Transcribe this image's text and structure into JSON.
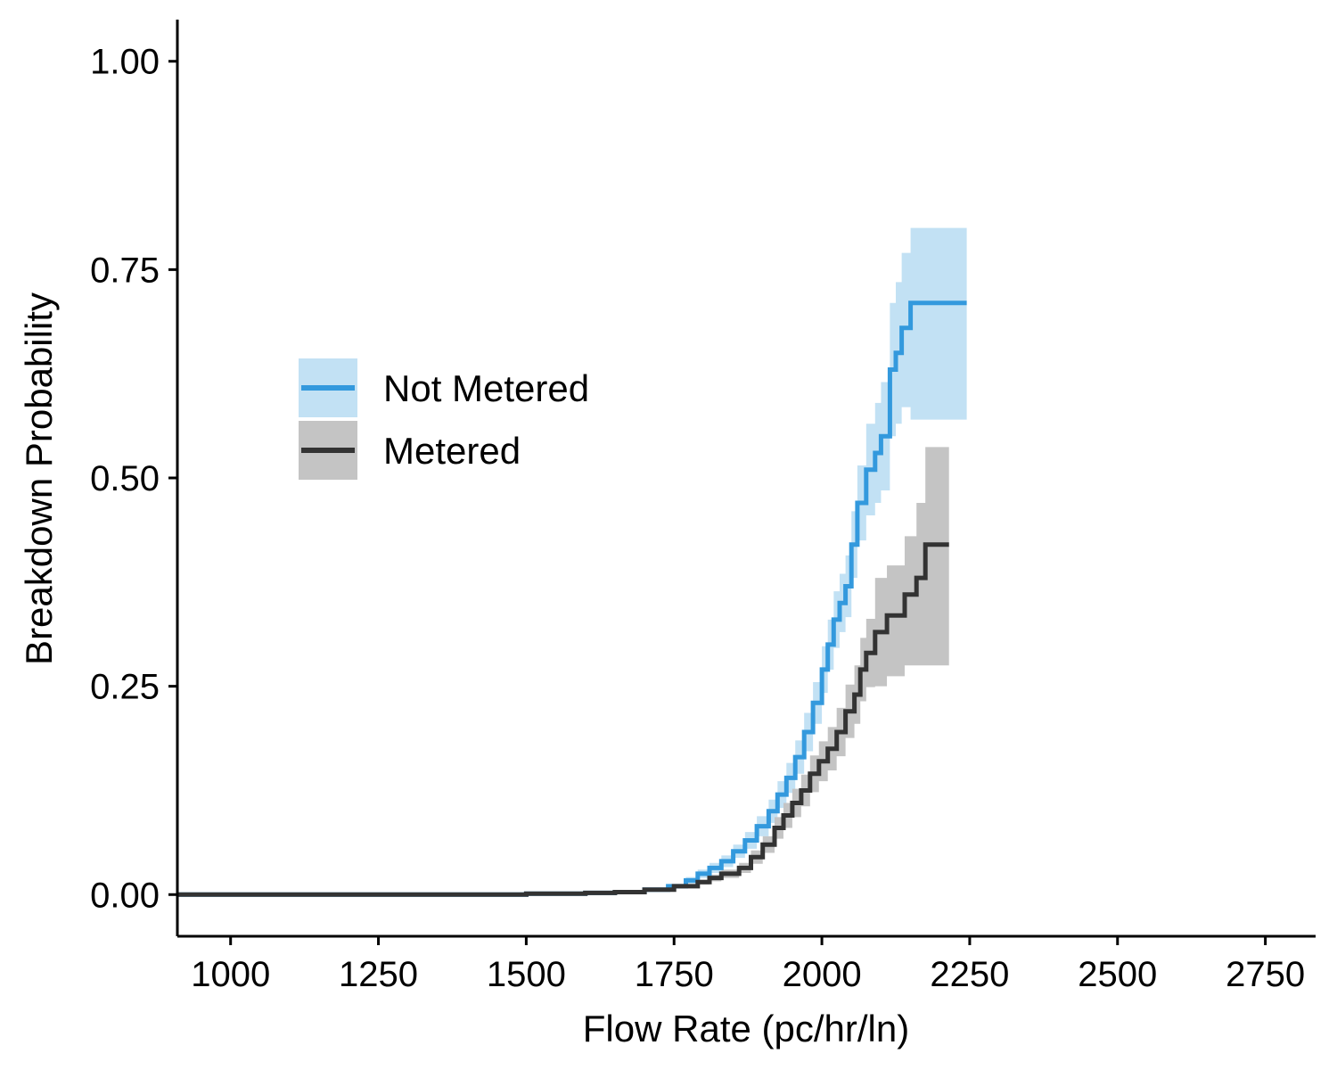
{
  "chart_data": {
    "type": "line",
    "xlabel": "Flow Rate (pc/hr/ln)",
    "ylabel": "Breakdown Probability",
    "xlim": [
      910,
      2835
    ],
    "ylim": [
      -0.05,
      1.05
    ],
    "xticks": [
      1000,
      1250,
      1500,
      1750,
      2000,
      2250,
      2500,
      2750
    ],
    "xtick_labels": [
      "1000",
      "1250",
      "1500",
      "1750",
      "2000",
      "2250",
      "2500",
      "2750"
    ],
    "yticks": [
      0,
      0.25,
      0.5,
      0.75,
      1.0
    ],
    "ytick_labels": [
      "0.00",
      "0.25",
      "0.50",
      "0.75",
      "1.00"
    ],
    "grid": false,
    "legend_position": "left-middle",
    "step": true,
    "series": [
      {
        "name": "Not Metered",
        "color": "#3399dd",
        "band_color": "#c2e1f4",
        "points": [
          [
            910,
            0
          ],
          [
            1400,
            0
          ],
          [
            1500,
            0.001
          ],
          [
            1600,
            0.002
          ],
          [
            1650,
            0.003
          ],
          [
            1700,
            0.006
          ],
          [
            1740,
            0.01
          ],
          [
            1770,
            0.017
          ],
          [
            1790,
            0.025
          ],
          [
            1810,
            0.032
          ],
          [
            1830,
            0.04
          ],
          [
            1850,
            0.052
          ],
          [
            1870,
            0.065
          ],
          [
            1890,
            0.082
          ],
          [
            1910,
            0.1
          ],
          [
            1925,
            0.12
          ],
          [
            1940,
            0.14
          ],
          [
            1955,
            0.165
          ],
          [
            1970,
            0.195
          ],
          [
            1985,
            0.23
          ],
          [
            2000,
            0.27
          ],
          [
            2010,
            0.3
          ],
          [
            2020,
            0.33
          ],
          [
            2030,
            0.35
          ],
          [
            2040,
            0.37
          ],
          [
            2050,
            0.42
          ],
          [
            2060,
            0.47
          ],
          [
            2075,
            0.51
          ],
          [
            2090,
            0.53
          ],
          [
            2100,
            0.55
          ],
          [
            2115,
            0.63
          ],
          [
            2125,
            0.65
          ],
          [
            2135,
            0.68
          ],
          [
            2150,
            0.71
          ],
          [
            2245,
            0.71
          ]
        ],
        "lower": [
          [
            910,
            0
          ],
          [
            1400,
            0
          ],
          [
            1500,
            0.0
          ],
          [
            1600,
            0.001
          ],
          [
            1650,
            0.002
          ],
          [
            1700,
            0.004
          ],
          [
            1740,
            0.008
          ],
          [
            1770,
            0.013
          ],
          [
            1790,
            0.02
          ],
          [
            1810,
            0.026
          ],
          [
            1830,
            0.033
          ],
          [
            1850,
            0.044
          ],
          [
            1870,
            0.055
          ],
          [
            1890,
            0.07
          ],
          [
            1910,
            0.086
          ],
          [
            1925,
            0.104
          ],
          [
            1940,
            0.122
          ],
          [
            1955,
            0.145
          ],
          [
            1970,
            0.172
          ],
          [
            1985,
            0.205
          ],
          [
            2000,
            0.242
          ],
          [
            2010,
            0.27
          ],
          [
            2020,
            0.296
          ],
          [
            2030,
            0.315
          ],
          [
            2040,
            0.333
          ],
          [
            2050,
            0.38
          ],
          [
            2060,
            0.425
          ],
          [
            2075,
            0.455
          ],
          [
            2090,
            0.47
          ],
          [
            2100,
            0.485
          ],
          [
            2115,
            0.55
          ],
          [
            2125,
            0.565
          ],
          [
            2135,
            0.585
          ],
          [
            2150,
            0.57
          ],
          [
            2245,
            0.57
          ]
        ],
        "upper": [
          [
            910,
            0
          ],
          [
            1400,
            0.001
          ],
          [
            1500,
            0.002
          ],
          [
            1600,
            0.003
          ],
          [
            1650,
            0.004
          ],
          [
            1700,
            0.008
          ],
          [
            1740,
            0.012
          ],
          [
            1770,
            0.021
          ],
          [
            1790,
            0.03
          ],
          [
            1810,
            0.038
          ],
          [
            1830,
            0.047
          ],
          [
            1850,
            0.06
          ],
          [
            1870,
            0.075
          ],
          [
            1890,
            0.094
          ],
          [
            1910,
            0.114
          ],
          [
            1925,
            0.136
          ],
          [
            1940,
            0.158
          ],
          [
            1955,
            0.185
          ],
          [
            1970,
            0.218
          ],
          [
            1985,
            0.255
          ],
          [
            2000,
            0.298
          ],
          [
            2010,
            0.33
          ],
          [
            2020,
            0.364
          ],
          [
            2030,
            0.385
          ],
          [
            2040,
            0.407
          ],
          [
            2050,
            0.46
          ],
          [
            2060,
            0.515
          ],
          [
            2075,
            0.565
          ],
          [
            2090,
            0.59
          ],
          [
            2100,
            0.615
          ],
          [
            2115,
            0.71
          ],
          [
            2125,
            0.735
          ],
          [
            2135,
            0.77
          ],
          [
            2150,
            0.8
          ],
          [
            2245,
            0.8
          ]
        ]
      },
      {
        "name": "Metered",
        "color": "#333333",
        "band_color": "#c4c4c4",
        "points": [
          [
            910,
            0
          ],
          [
            1500,
            0.001
          ],
          [
            1600,
            0.002
          ],
          [
            1650,
            0.003
          ],
          [
            1700,
            0.006
          ],
          [
            1750,
            0.01
          ],
          [
            1790,
            0.015
          ],
          [
            1810,
            0.02
          ],
          [
            1830,
            0.025
          ],
          [
            1860,
            0.032
          ],
          [
            1880,
            0.045
          ],
          [
            1900,
            0.06
          ],
          [
            1920,
            0.08
          ],
          [
            1935,
            0.095
          ],
          [
            1950,
            0.11
          ],
          [
            1965,
            0.125
          ],
          [
            1980,
            0.145
          ],
          [
            1995,
            0.16
          ],
          [
            2010,
            0.175
          ],
          [
            2025,
            0.195
          ],
          [
            2040,
            0.22
          ],
          [
            2055,
            0.24
          ],
          [
            2065,
            0.27
          ],
          [
            2075,
            0.29
          ],
          [
            2090,
            0.315
          ],
          [
            2110,
            0.335
          ],
          [
            2140,
            0.36
          ],
          [
            2160,
            0.38
          ],
          [
            2175,
            0.42
          ],
          [
            2215,
            0.42
          ]
        ],
        "lower": [
          [
            910,
            0
          ],
          [
            1500,
            0.0
          ],
          [
            1600,
            0.001
          ],
          [
            1650,
            0.002
          ],
          [
            1700,
            0.004
          ],
          [
            1750,
            0.008
          ],
          [
            1790,
            0.012
          ],
          [
            1810,
            0.016
          ],
          [
            1830,
            0.02
          ],
          [
            1860,
            0.026
          ],
          [
            1880,
            0.037
          ],
          [
            1900,
            0.05
          ],
          [
            1920,
            0.067
          ],
          [
            1935,
            0.08
          ],
          [
            1950,
            0.093
          ],
          [
            1965,
            0.106
          ],
          [
            1980,
            0.123
          ],
          [
            1995,
            0.136
          ],
          [
            2010,
            0.149
          ],
          [
            2025,
            0.166
          ],
          [
            2040,
            0.188
          ],
          [
            2055,
            0.205
          ],
          [
            2065,
            0.232
          ],
          [
            2075,
            0.249
          ],
          [
            2090,
            0.25
          ],
          [
            2110,
            0.262
          ],
          [
            2140,
            0.275
          ],
          [
            2160,
            0.275
          ],
          [
            2175,
            0.275
          ],
          [
            2215,
            0.275
          ]
        ],
        "upper": [
          [
            910,
            0
          ],
          [
            1500,
            0.002
          ],
          [
            1600,
            0.003
          ],
          [
            1650,
            0.004
          ],
          [
            1700,
            0.008
          ],
          [
            1750,
            0.012
          ],
          [
            1790,
            0.018
          ],
          [
            1810,
            0.024
          ],
          [
            1830,
            0.03
          ],
          [
            1860,
            0.038
          ],
          [
            1880,
            0.053
          ],
          [
            1900,
            0.07
          ],
          [
            1920,
            0.093
          ],
          [
            1935,
            0.11
          ],
          [
            1950,
            0.127
          ],
          [
            1965,
            0.144
          ],
          [
            1980,
            0.167
          ],
          [
            1995,
            0.184
          ],
          [
            2010,
            0.201
          ],
          [
            2025,
            0.224
          ],
          [
            2040,
            0.252
          ],
          [
            2055,
            0.275
          ],
          [
            2065,
            0.308
          ],
          [
            2075,
            0.331
          ],
          [
            2090,
            0.38
          ],
          [
            2110,
            0.395
          ],
          [
            2140,
            0.43
          ],
          [
            2160,
            0.47
          ],
          [
            2175,
            0.537
          ],
          [
            2215,
            0.537
          ]
        ]
      }
    ]
  }
}
